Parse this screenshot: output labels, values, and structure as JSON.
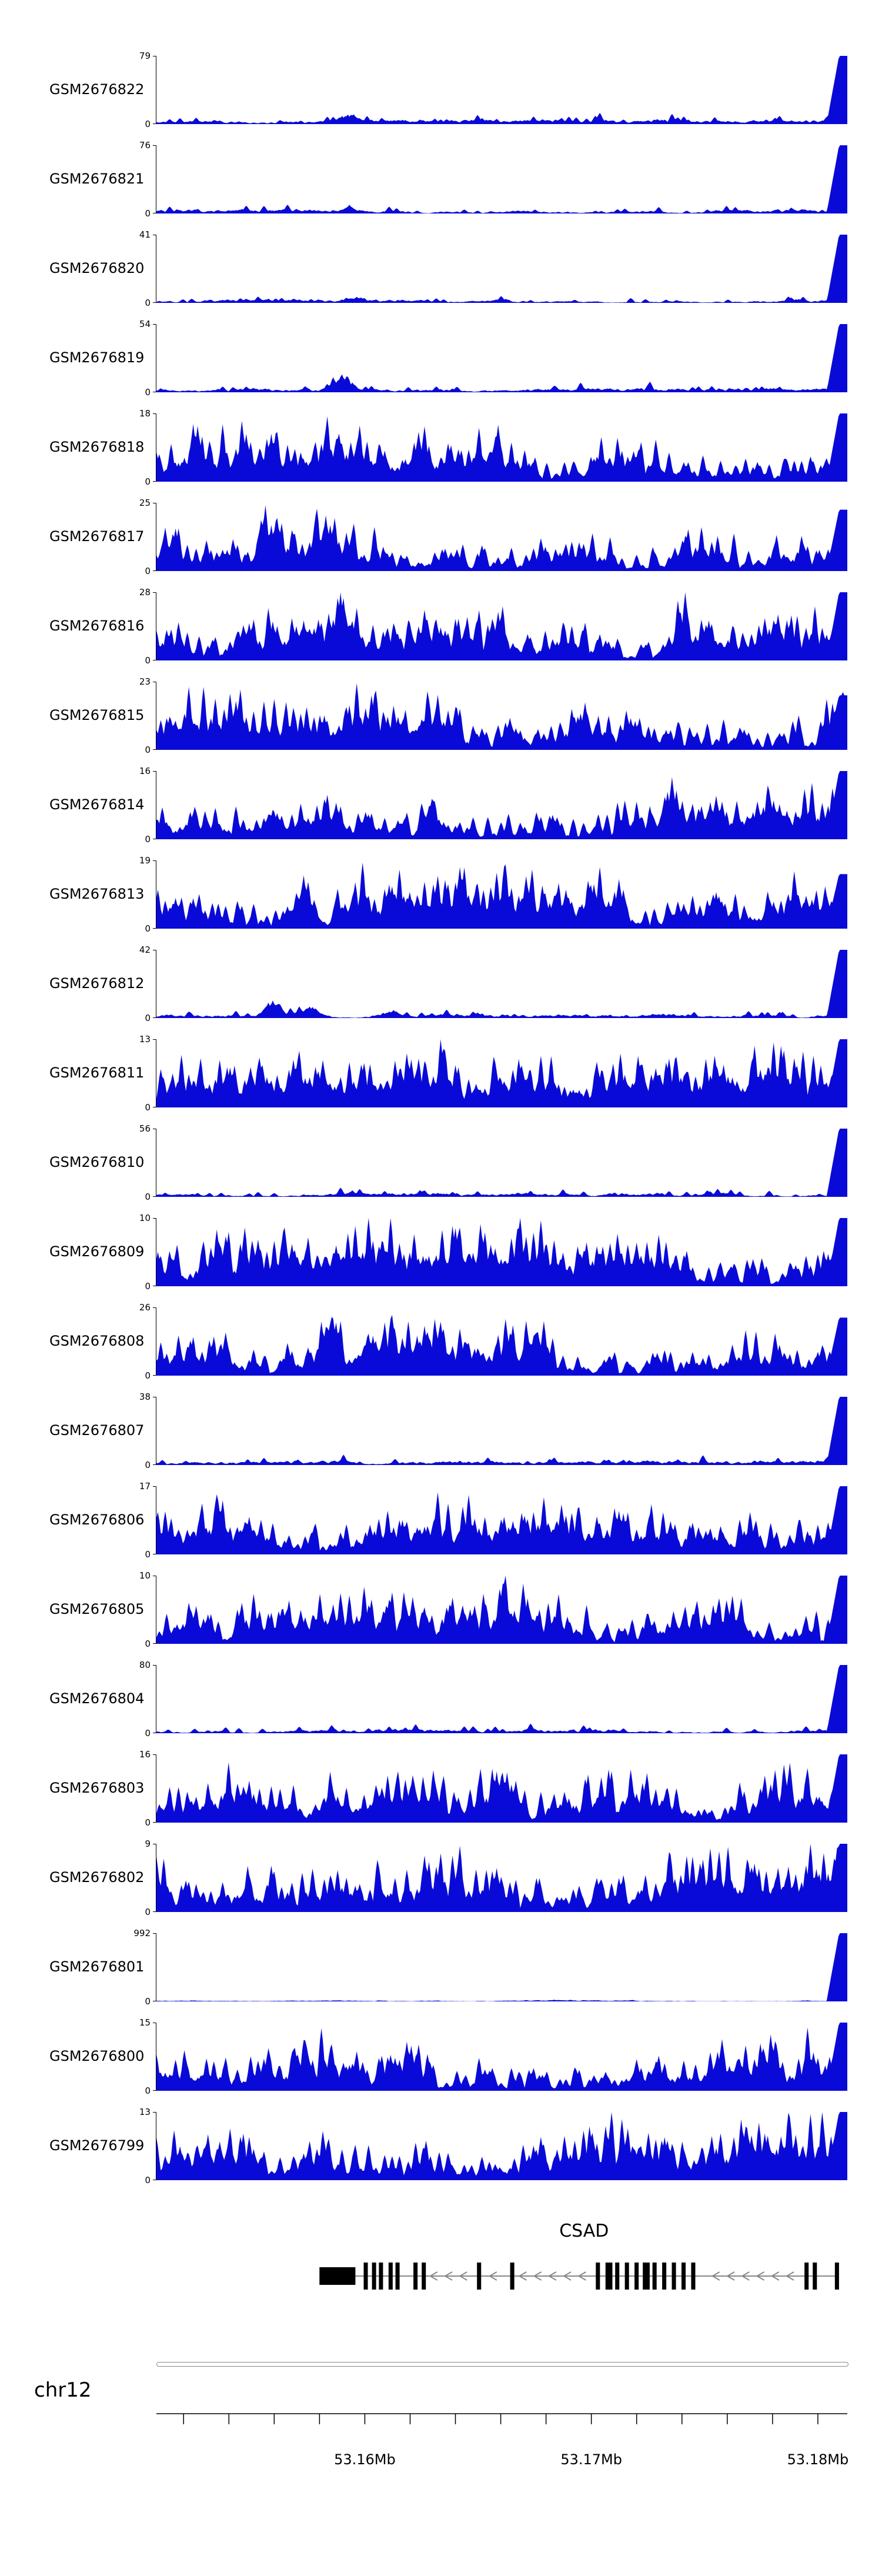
{
  "chart_data": {
    "type": "area",
    "title": "",
    "description": "Genome browser read-coverage tracks for 24 GSM samples over the CSAD locus on chr12 (53.15-53.18 Mb). Each track is a blue filled coverage profile with its own y-axis maximum; below are the CSAD gene model (minus strand), chromosome ideogram line and genome coordinate axis.",
    "accent_color": "#0a0ad8",
    "y_zero_label": "0",
    "axis": {
      "chromosome_label": "chr12",
      "range_mb": [
        53.1508,
        53.1813
      ],
      "minor_tick_step_mb": 0.002,
      "tick_labels": [
        {
          "text": "53.16Mb",
          "mb": 53.16
        },
        {
          "text": "53.17Mb",
          "mb": 53.17
        },
        {
          "text": "53.18Mb",
          "mb": 53.18
        }
      ]
    },
    "profiles": {
      "sparse": {
        "base": 0.03,
        "spike_prob": 0.07,
        "spike_amp": 0.11,
        "right_spike": 1
      },
      "dense": {
        "base": 0.22,
        "spike_prob": 0.3,
        "spike_amp": 0.6,
        "right_spike": 1
      },
      "flat": {
        "base": 0.01,
        "spike_prob": 0.02,
        "spike_amp": 0.012,
        "right_spike": 1
      }
    },
    "tracks": [
      {
        "label": "GSM2676822",
        "ymax": "79",
        "profile": "sparse",
        "seed": 101,
        "bumps": [
          {
            "f": 0.28,
            "a": 0.12
          }
        ]
      },
      {
        "label": "GSM2676821",
        "ymax": "76",
        "profile": "sparse",
        "seed": 202,
        "bumps": [
          {
            "f": 0.28,
            "a": 0.09
          }
        ]
      },
      {
        "label": "GSM2676820",
        "ymax": "41",
        "profile": "sparse",
        "seed": 303,
        "bumps": [
          {
            "f": 0.29,
            "a": 0.08
          }
        ]
      },
      {
        "label": "GSM2676819",
        "ymax": "54",
        "profile": "sparse",
        "seed": 404,
        "bumps": [
          {
            "f": 0.27,
            "a": 0.24
          }
        ]
      },
      {
        "label": "GSM2676818",
        "ymax": "18",
        "profile": "dense",
        "seed": 505
      },
      {
        "label": "GSM2676817",
        "ymax": "25",
        "profile": "dense",
        "seed": 606,
        "right_spike": 0.9,
        "bumps": [
          {
            "f": 0.16,
            "a": 0.55
          }
        ]
      },
      {
        "label": "GSM2676816",
        "ymax": "28",
        "profile": "dense",
        "seed": 707,
        "bumps": [
          {
            "f": 0.27,
            "a": 0.7
          }
        ]
      },
      {
        "label": "GSM2676815",
        "ymax": "23",
        "profile": "dense",
        "seed": 808,
        "right_spike": 0.8
      },
      {
        "label": "GSM2676814",
        "ymax": "16",
        "profile": "dense",
        "seed": 909,
        "bumps": [
          {
            "f": 0.4,
            "a": 0.45
          }
        ]
      },
      {
        "label": "GSM2676813",
        "ymax": "19",
        "profile": "dense",
        "seed": 1010,
        "right_spike": 0.8,
        "bumps": [
          {
            "f": 0.21,
            "a": 0.55
          }
        ]
      },
      {
        "label": "GSM2676812",
        "ymax": "42",
        "profile": "sparse",
        "seed": 1111,
        "bumps": [
          {
            "f": 0.17,
            "a": 0.22
          },
          {
            "f": 0.22,
            "a": 0.18
          },
          {
            "f": 0.34,
            "a": 0.12
          }
        ]
      },
      {
        "label": "GSM2676811",
        "ymax": "13",
        "profile": "dense",
        "seed": 1212,
        "gain": 1.05
      },
      {
        "label": "GSM2676810",
        "ymax": "56",
        "profile": "sparse",
        "seed": 1313
      },
      {
        "label": "GSM2676809",
        "ymax": "10",
        "profile": "dense",
        "seed": 1414,
        "gain": 1.1
      },
      {
        "label": "GSM2676808",
        "ymax": "26",
        "profile": "dense",
        "seed": 1515,
        "right_spike": 0.85,
        "bumps": [
          {
            "f": 0.25,
            "a": 0.5
          },
          {
            "f": 0.55,
            "a": 0.45
          }
        ]
      },
      {
        "label": "GSM2676807",
        "ymax": "38",
        "profile": "sparse",
        "seed": 1616
      },
      {
        "label": "GSM2676806",
        "ymax": "17",
        "profile": "dense",
        "seed": 1717
      },
      {
        "label": "GSM2676805",
        "ymax": "10",
        "profile": "dense",
        "seed": 1818
      },
      {
        "label": "GSM2676804",
        "ymax": "80",
        "profile": "sparse",
        "seed": 1919
      },
      {
        "label": "GSM2676803",
        "ymax": "16",
        "profile": "dense",
        "seed": 2020
      },
      {
        "label": "GSM2676802",
        "ymax": "9",
        "profile": "dense",
        "seed": 2121,
        "gain": 1.25
      },
      {
        "label": "GSM2676801",
        "ymax": "992",
        "profile": "flat",
        "seed": 2222
      },
      {
        "label": "GSM2676800",
        "ymax": "15",
        "profile": "dense",
        "seed": 2323
      },
      {
        "label": "GSM2676799",
        "ymax": "13",
        "profile": "dense",
        "seed": 2424,
        "gain": 1.1
      }
    ],
    "gene_track": {
      "gene_label": "CSAD",
      "strand": "-",
      "span": [
        0.236,
        0.985
      ],
      "block": {
        "f": 0.236,
        "w": 0.052
      },
      "exons": [
        {
          "f": 0.3
        },
        {
          "f": 0.312
        },
        {
          "f": 0.322
        },
        {
          "f": 0.336
        },
        {
          "f": 0.346
        },
        {
          "f": 0.372
        },
        {
          "f": 0.384
        },
        {
          "f": 0.464
        },
        {
          "f": 0.512
        },
        {
          "f": 0.636
        },
        {
          "f": 0.65,
          "w": 0.01
        },
        {
          "f": 0.664
        },
        {
          "f": 0.678
        },
        {
          "f": 0.692
        },
        {
          "f": 0.704,
          "w": 0.01
        },
        {
          "f": 0.718
        },
        {
          "f": 0.732
        },
        {
          "f": 0.746
        },
        {
          "f": 0.76
        },
        {
          "f": 0.774
        },
        {
          "f": 0.938
        },
        {
          "f": 0.95
        },
        {
          "f": 0.982
        }
      ]
    }
  }
}
